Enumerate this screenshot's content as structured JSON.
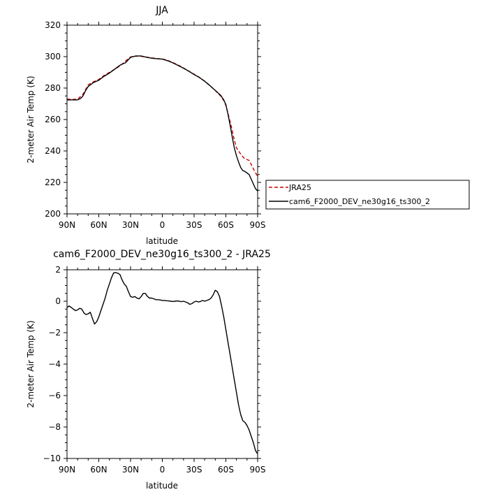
{
  "chart_data": [
    {
      "type": "line",
      "title": "JJA",
      "xlabel": "latitude",
      "ylabel": "2-meter Air Temp (K)",
      "xlim": [
        90,
        -90
      ],
      "ylim": [
        200,
        320
      ],
      "x_ticks": [
        90,
        60,
        30,
        0,
        -30,
        -60,
        -90
      ],
      "x_tick_labels": [
        "90N",
        "60N",
        "30N",
        "0",
        "30S",
        "60S",
        "90S"
      ],
      "y_ticks": [
        200,
        220,
        240,
        260,
        280,
        300,
        320
      ],
      "y_tick_labels": [
        "200",
        "220",
        "240",
        "260",
        "280",
        "300",
        "320"
      ],
      "legend_position": "right",
      "series": [
        {
          "name": "JRA25",
          "color": "#cc0000",
          "dash": "dashed",
          "x": [
            90,
            85,
            80,
            75,
            70,
            65,
            60,
            55,
            50,
            45,
            40,
            35,
            30,
            25,
            20,
            15,
            10,
            5,
            0,
            -5,
            -10,
            -15,
            -20,
            -25,
            -30,
            -35,
            -40,
            -45,
            -50,
            -55,
            -58,
            -60,
            -62,
            -65,
            -68,
            -70,
            -72,
            -75,
            -78,
            -80,
            -82,
            -85,
            -88,
            -90
          ],
          "values": [
            273,
            272.8,
            273,
            276,
            282,
            284,
            285.5,
            288,
            290,
            292,
            294,
            297,
            299.8,
            300.3,
            300.2,
            299.7,
            299.2,
            298.8,
            298.5,
            297.6,
            296.2,
            294.6,
            292.8,
            290.8,
            288.8,
            286.8,
            284.4,
            281.5,
            278.5,
            275,
            272,
            269,
            264,
            256,
            247,
            242,
            240,
            237,
            235,
            234.5,
            234,
            230,
            226,
            224
          ]
        },
        {
          "name": "cam6_F2000_DEV_ne30g16_ts300_2",
          "color": "#000000",
          "dash": "solid",
          "x": [
            90,
            85,
            80,
            77,
            75,
            72,
            70,
            65,
            60,
            55,
            50,
            45,
            42,
            40,
            37,
            35,
            30,
            25,
            20,
            15,
            10,
            5,
            0,
            -5,
            -10,
            -15,
            -20,
            -25,
            -30,
            -35,
            -40,
            -45,
            -50,
            -55,
            -58,
            -60,
            -62,
            -64,
            -66,
            -68,
            -70,
            -72,
            -74,
            -76,
            -78,
            -80,
            -82,
            -84,
            -86,
            -88,
            -90
          ],
          "values": [
            272.5,
            272.5,
            272.5,
            273.5,
            275,
            279,
            281,
            283.5,
            285,
            287.5,
            289.5,
            292,
            293.5,
            294.5,
            295.5,
            296,
            299.5,
            300.4,
            300.4,
            299.6,
            299,
            298.6,
            298.4,
            297.4,
            296,
            294.3,
            292.6,
            290.7,
            288.6,
            286.7,
            284.3,
            281.5,
            278.5,
            275.5,
            272.5,
            269.5,
            263.5,
            256.5,
            249,
            242,
            237,
            233,
            229.5,
            227.5,
            227,
            226,
            225,
            222,
            219,
            216,
            214.5
          ]
        }
      ]
    },
    {
      "type": "line",
      "title": "cam6_F2000_DEV_ne30g16_ts300_2 - JRA25",
      "xlabel": "latitude",
      "ylabel": "2-meter Air Temp (K)",
      "xlim": [
        90,
        -90
      ],
      "ylim": [
        -10,
        2
      ],
      "x_ticks": [
        90,
        60,
        30,
        0,
        -30,
        -60,
        -90
      ],
      "x_tick_labels": [
        "90N",
        "60N",
        "30N",
        "0",
        "30S",
        "60S",
        "90S"
      ],
      "y_ticks": [
        -10,
        -8,
        -6,
        -4,
        -2,
        0,
        2
      ],
      "y_tick_labels": [
        "−10",
        "−8",
        "−6",
        "−4",
        "−2",
        "0",
        "2"
      ],
      "series": [
        {
          "color": "#000000",
          "dash": "solid",
          "x": [
            90,
            88,
            86,
            84,
            82,
            80,
            78,
            76,
            74,
            72,
            70,
            68,
            66,
            64,
            62,
            60,
            58,
            56,
            54,
            52,
            50,
            48,
            46,
            44,
            42,
            40,
            38,
            36,
            34,
            32,
            30,
            28,
            26,
            24,
            22,
            20,
            18,
            16,
            14,
            12,
            10,
            8,
            6,
            4,
            2,
            0,
            -2,
            -4,
            -6,
            -8,
            -10,
            -12,
            -14,
            -16,
            -18,
            -20,
            -22,
            -24,
            -26,
            -28,
            -30,
            -32,
            -34,
            -36,
            -38,
            -40,
            -42,
            -44,
            -46,
            -48,
            -50,
            -52,
            -54,
            -56,
            -58,
            -60,
            -62,
            -64,
            -66,
            -68,
            -70,
            -72,
            -74,
            -76,
            -78,
            -80,
            -82,
            -84,
            -86,
            -88,
            -90
          ],
          "values": [
            -0.4,
            -0.3,
            -0.4,
            -0.5,
            -0.6,
            -0.55,
            -0.45,
            -0.5,
            -0.75,
            -0.85,
            -0.8,
            -0.7,
            -1.1,
            -1.45,
            -1.3,
            -1.0,
            -0.6,
            -0.2,
            0.2,
            0.7,
            1.1,
            1.5,
            1.8,
            1.82,
            1.78,
            1.7,
            1.35,
            1.1,
            0.95,
            0.6,
            0.3,
            0.25,
            0.3,
            0.2,
            0.15,
            0.3,
            0.5,
            0.5,
            0.3,
            0.2,
            0.2,
            0.15,
            0.1,
            0.1,
            0.08,
            0.05,
            0.05,
            0.03,
            0.02,
            0.0,
            -0.02,
            0.0,
            0.02,
            0.0,
            -0.03,
            0.0,
            -0.05,
            -0.1,
            -0.2,
            -0.15,
            -0.05,
            0.0,
            -0.05,
            -0.02,
            0.05,
            0.0,
            0.05,
            0.1,
            0.2,
            0.4,
            0.7,
            0.6,
            0.3,
            -0.3,
            -1.0,
            -1.8,
            -2.6,
            -3.4,
            -4.2,
            -5.0,
            -5.8,
            -6.6,
            -7.2,
            -7.6,
            -7.7,
            -7.9,
            -8.2,
            -8.6,
            -9.0,
            -9.5,
            -9.7
          ]
        }
      ]
    }
  ]
}
